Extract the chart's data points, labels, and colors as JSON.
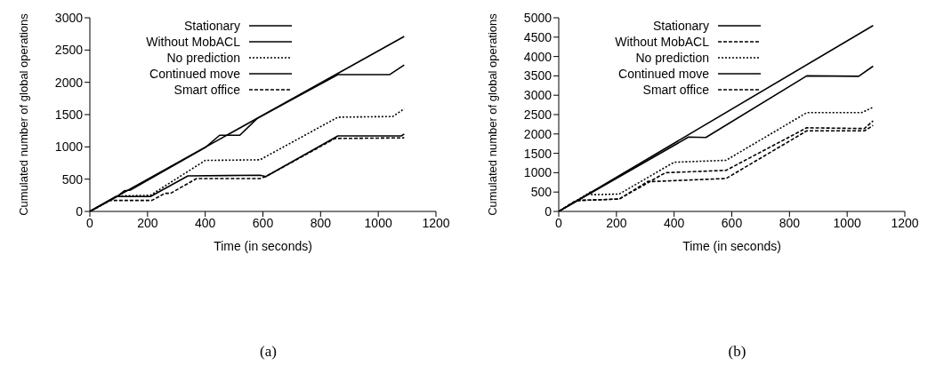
{
  "chart_data": [
    {
      "type": "line",
      "xlabel": "Time (in seconds)",
      "ylabel": "Cumulated number of global operations",
      "xlim": [
        0,
        1200
      ],
      "xticks": [
        0,
        200,
        400,
        600,
        800,
        1000,
        1200
      ],
      "ylim": [
        0,
        3000
      ],
      "yticks": [
        0,
        500,
        1000,
        1500,
        2000,
        2500,
        3000
      ],
      "grid": false,
      "legend": "top left",
      "marker": "none",
      "annotations": [
        "(a)"
      ],
      "series": [
        {
          "name": "Stationary",
          "color": "#000000",
          "line_style": "solid",
          "x": [
            0,
            1090
          ],
          "values": [
            0,
            2710
          ]
        },
        {
          "name": "Without MobACL",
          "color": "#000000",
          "line_style": "solid",
          "x": [
            0,
            90,
            210,
            340,
            590,
            610,
            860,
            1080,
            1090
          ],
          "values": [
            0,
            230,
            230,
            550,
            560,
            540,
            1170,
            1170,
            1200
          ]
        },
        {
          "name": "No prediction",
          "color": "#000000",
          "line_style": "dotted",
          "x": [
            0,
            100,
            210,
            400,
            590,
            860,
            1050,
            1090
          ],
          "values": [
            0,
            240,
            250,
            790,
            800,
            1460,
            1470,
            1590
          ]
        },
        {
          "name": "Continued move",
          "color": "#000000",
          "line_style": "solid",
          "x": [
            0,
            100,
            120,
            140,
            400,
            450,
            500,
            520,
            580,
            860,
            1040,
            1090
          ],
          "values": [
            0,
            250,
            320,
            330,
            990,
            1180,
            1180,
            1180,
            1440,
            2120,
            2120,
            2270
          ]
        },
        {
          "name": "Smart office",
          "color": "#000000",
          "line_style": "dashed",
          "x": [
            0,
            70,
            215,
            260,
            280,
            370,
            590,
            610,
            850,
            1090
          ],
          "values": [
            0,
            170,
            170,
            280,
            280,
            510,
            510,
            540,
            1130,
            1140
          ]
        }
      ]
    },
    {
      "type": "line",
      "xlabel": "Time (in seconds)",
      "ylabel": "Cumulated number of global operations",
      "xlim": [
        0,
        1200
      ],
      "xticks": [
        0,
        200,
        400,
        600,
        800,
        1000,
        1200
      ],
      "ylim": [
        0,
        5000
      ],
      "yticks": [
        0,
        500,
        1000,
        1500,
        2000,
        2500,
        3000,
        3500,
        4000,
        4500,
        5000
      ],
      "grid": false,
      "legend": "top left",
      "marker": "none",
      "annotations": [
        "(b)"
      ],
      "series": [
        {
          "name": "Stationary",
          "color": "#000000",
          "line_style": "solid",
          "x": [
            0,
            1090
          ],
          "values": [
            0,
            4800
          ]
        },
        {
          "name": "Without MobACL",
          "color": "#000000",
          "line_style": "dashed",
          "x": [
            0,
            60,
            210,
            370,
            580,
            860,
            1060,
            1090
          ],
          "values": [
            0,
            280,
            320,
            1000,
            1060,
            2160,
            2140,
            2340
          ]
        },
        {
          "name": "No prediction",
          "color": "#000000",
          "line_style": "dotted",
          "x": [
            0,
            110,
            115,
            210,
            400,
            580,
            860,
            1050,
            1090
          ],
          "values": [
            0,
            500,
            430,
            450,
            1270,
            1320,
            2550,
            2550,
            2690
          ]
        },
        {
          "name": "Continued move",
          "color": "#000000",
          "line_style": "solid",
          "x": [
            0,
            450,
            510,
            860,
            1040,
            1090
          ],
          "values": [
            0,
            1920,
            1910,
            3500,
            3490,
            3750
          ]
        },
        {
          "name": "Smart office",
          "color": "#000000",
          "line_style": "dashed",
          "x": [
            0,
            60,
            210,
            310,
            320,
            580,
            860,
            1060,
            1090
          ],
          "values": [
            0,
            280,
            320,
            780,
            770,
            850,
            2080,
            2080,
            2220
          ]
        }
      ]
    }
  ]
}
